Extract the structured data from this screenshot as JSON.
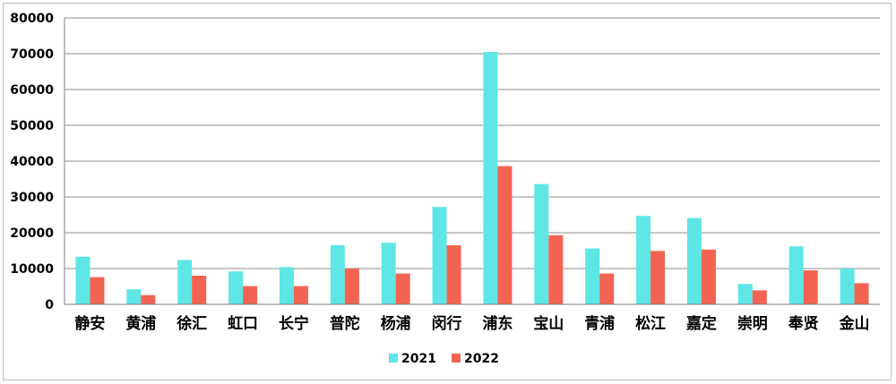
{
  "chart_data": {
    "type": "bar",
    "title": "",
    "xlabel": "",
    "ylabel": "",
    "ylim": [
      0,
      80000
    ],
    "yticks": [
      "0",
      "10000",
      "20000",
      "30000",
      "40000",
      "50000",
      "60000",
      "70000",
      "80000"
    ],
    "grid": "horizontal",
    "legend_position": "bottom",
    "categories": [
      "静安",
      "黄浦",
      "徐汇",
      "虹口",
      "长宁",
      "普陀",
      "杨浦",
      "闵行",
      "浦东",
      "宝山",
      "青浦",
      "松江",
      "嘉定",
      "崇明",
      "奉贤",
      "金山"
    ],
    "series": [
      {
        "name": "2021",
        "color": "#5ee6e6",
        "values": [
          13300,
          4200,
          12400,
          9200,
          10400,
          16500,
          17200,
          27200,
          70500,
          33600,
          15600,
          24700,
          24100,
          5700,
          16200,
          10000
        ]
      },
      {
        "name": "2022",
        "color": "#f26451",
        "values": [
          7600,
          2600,
          8000,
          5100,
          5100,
          10000,
          8600,
          16500,
          38600,
          19300,
          8600,
          14900,
          15300,
          3900,
          9500,
          5900
        ]
      }
    ]
  }
}
